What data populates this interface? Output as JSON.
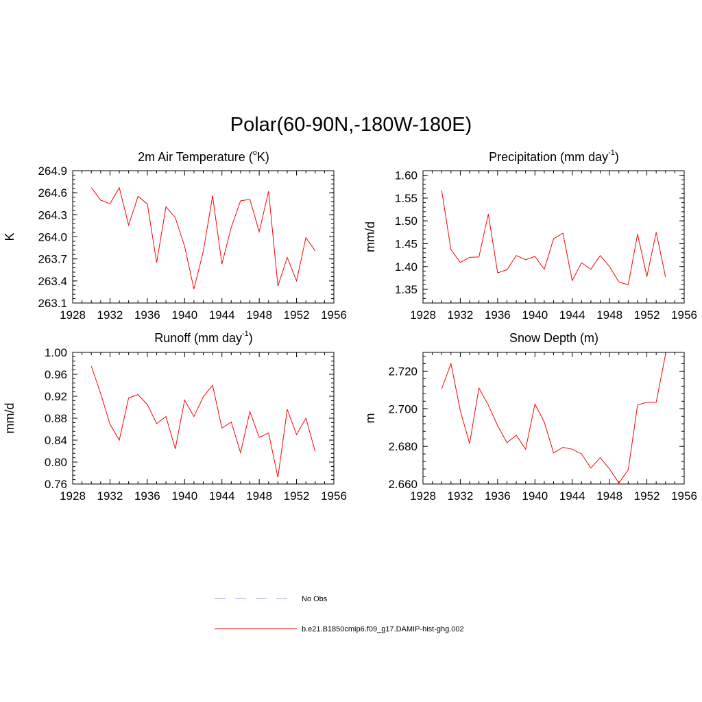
{
  "title": "Polar(60-90N,-180W-180E)",
  "chart_data": [
    {
      "type": "line",
      "title_main": "2m Air Temperature (",
      "title_sup": "o",
      "title_end": "K)",
      "ylabel": "K",
      "xlim": [
        1928,
        1956
      ],
      "ylim": [
        263.1,
        264.9
      ],
      "xticks": [
        1928,
        1932,
        1936,
        1940,
        1944,
        1948,
        1952,
        1956
      ],
      "yticks": [
        "263.1",
        "263.4",
        "263.7",
        "264.0",
        "264.3",
        "264.6",
        "264.9"
      ],
      "x": [
        1930,
        1931,
        1932,
        1933,
        1934,
        1935,
        1936,
        1937,
        1938,
        1939,
        1940,
        1941,
        1942,
        1943,
        1944,
        1945,
        1946,
        1947,
        1948,
        1949,
        1950,
        1951,
        1952,
        1953,
        1954
      ],
      "series": [
        {
          "color": "#ff0000",
          "values": [
            264.67,
            264.5,
            264.45,
            264.67,
            264.16,
            264.55,
            264.45,
            263.65,
            264.41,
            264.26,
            263.87,
            263.29,
            263.8,
            264.56,
            263.63,
            264.13,
            264.49,
            264.51,
            264.07,
            264.62,
            263.33,
            263.72,
            263.4,
            263.99,
            263.81
          ]
        }
      ]
    },
    {
      "type": "line",
      "title_main": "Precipitation (mm day",
      "title_sup": "-1",
      "title_end": ")",
      "ylabel": "mm/d",
      "xlim": [
        1928,
        1956
      ],
      "ylim": [
        1.32,
        1.61
      ],
      "xticks": [
        1928,
        1932,
        1936,
        1940,
        1944,
        1948,
        1952,
        1956
      ],
      "yticks": [
        "1.35",
        "1.40",
        "1.45",
        "1.50",
        "1.55",
        "1.60"
      ],
      "x": [
        1930,
        1931,
        1932,
        1933,
        1934,
        1935,
        1936,
        1937,
        1938,
        1939,
        1940,
        1941,
        1942,
        1943,
        1944,
        1945,
        1946,
        1947,
        1948,
        1949,
        1950,
        1951,
        1952,
        1953,
        1954
      ],
      "series": [
        {
          "color": "#ff0000",
          "values": [
            1.567,
            1.437,
            1.409,
            1.42,
            1.421,
            1.515,
            1.386,
            1.393,
            1.424,
            1.415,
            1.422,
            1.394,
            1.461,
            1.473,
            1.369,
            1.408,
            1.394,
            1.424,
            1.4,
            1.366,
            1.36,
            1.471,
            1.378,
            1.475,
            1.377
          ]
        }
      ]
    },
    {
      "type": "line",
      "title_main": "Runoff (mm day",
      "title_sup": "-1",
      "title_end": ")",
      "ylabel": "mm/d",
      "xlim": [
        1928,
        1956
      ],
      "ylim": [
        0.76,
        1.0
      ],
      "xticks": [
        1928,
        1932,
        1936,
        1940,
        1944,
        1948,
        1952,
        1956
      ],
      "yticks": [
        "0.76",
        "0.80",
        "0.84",
        "0.88",
        "0.92",
        "0.96",
        "1.00"
      ],
      "x": [
        1930,
        1931,
        1932,
        1933,
        1934,
        1935,
        1936,
        1937,
        1938,
        1939,
        1940,
        1941,
        1942,
        1943,
        1944,
        1945,
        1946,
        1947,
        1948,
        1949,
        1950,
        1951,
        1952,
        1953,
        1954
      ],
      "series": [
        {
          "color": "#ff0000",
          "values": [
            0.975,
            0.925,
            0.869,
            0.84,
            0.917,
            0.923,
            0.905,
            0.87,
            0.883,
            0.824,
            0.913,
            0.883,
            0.919,
            0.94,
            0.862,
            0.873,
            0.817,
            0.892,
            0.845,
            0.853,
            0.772,
            0.896,
            0.85,
            0.88,
            0.819
          ]
        }
      ]
    },
    {
      "type": "line",
      "title_main": "Snow Depth (m)",
      "title_sup": "",
      "title_end": "",
      "ylabel": "m",
      "xlim": [
        1928,
        1956
      ],
      "ylim": [
        2.66,
        2.73
      ],
      "xticks": [
        1928,
        1932,
        1936,
        1940,
        1944,
        1948,
        1952,
        1956
      ],
      "yticks": [
        "2.660",
        "2.680",
        "2.700",
        "2.720"
      ],
      "x": [
        1930,
        1931,
        1932,
        1933,
        1934,
        1935,
        1936,
        1937,
        1938,
        1939,
        1940,
        1941,
        1942,
        1943,
        1944,
        1945,
        1946,
        1947,
        1948,
        1949,
        1950,
        1951,
        1952,
        1953,
        1954
      ],
      "series": [
        {
          "color": "#ff0000",
          "values": [
            2.7105,
            2.724,
            2.699,
            2.6815,
            2.711,
            2.702,
            2.691,
            2.682,
            2.686,
            2.6785,
            2.7025,
            2.693,
            2.6765,
            2.6795,
            2.6785,
            2.676,
            2.6685,
            2.674,
            2.668,
            2.6605,
            2.6675,
            2.702,
            2.7035,
            2.7035,
            2.729
          ]
        }
      ]
    }
  ],
  "legend": [
    {
      "label": "No Obs",
      "color": "#9999ff",
      "dash": true
    },
    {
      "label": "b.e21.B1850cmip6.f09_g17.DAMIP-hist-ghg.002",
      "color": "#ff0000",
      "dash": false
    }
  ]
}
